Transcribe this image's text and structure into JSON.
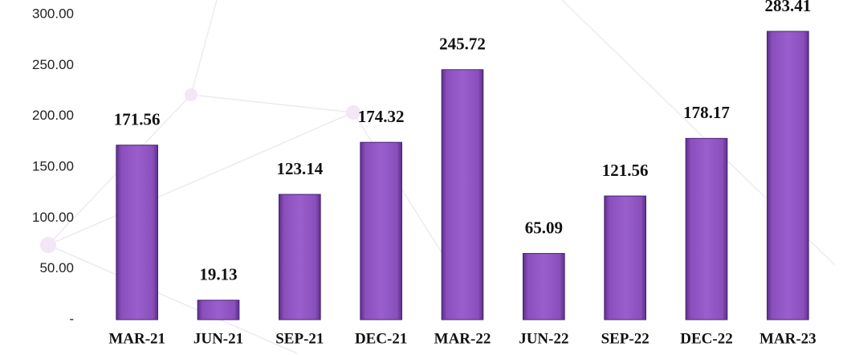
{
  "chart_data": {
    "type": "bar",
    "categories": [
      "MAR-21",
      "JUN-21",
      "SEP-21",
      "DEC-21",
      "MAR-22",
      "JUN-22",
      "SEP-22",
      "DEC-22",
      "MAR-23"
    ],
    "values": [
      171.56,
      19.13,
      123.14,
      174.32,
      245.72,
      65.09,
      121.56,
      178.17,
      283.41
    ],
    "color": "#8a4fbc",
    "ylim": [
      0,
      300
    ],
    "yticks": [
      {
        "value": 0,
        "label": "-"
      },
      {
        "value": 50,
        "label": "50.00"
      },
      {
        "value": 100,
        "label": "100.00"
      },
      {
        "value": 150,
        "label": "150.00"
      },
      {
        "value": 200,
        "label": "200.00"
      },
      {
        "value": 250,
        "label": "250.00"
      },
      {
        "value": 300,
        "label": "300.00"
      }
    ],
    "grid": false
  }
}
